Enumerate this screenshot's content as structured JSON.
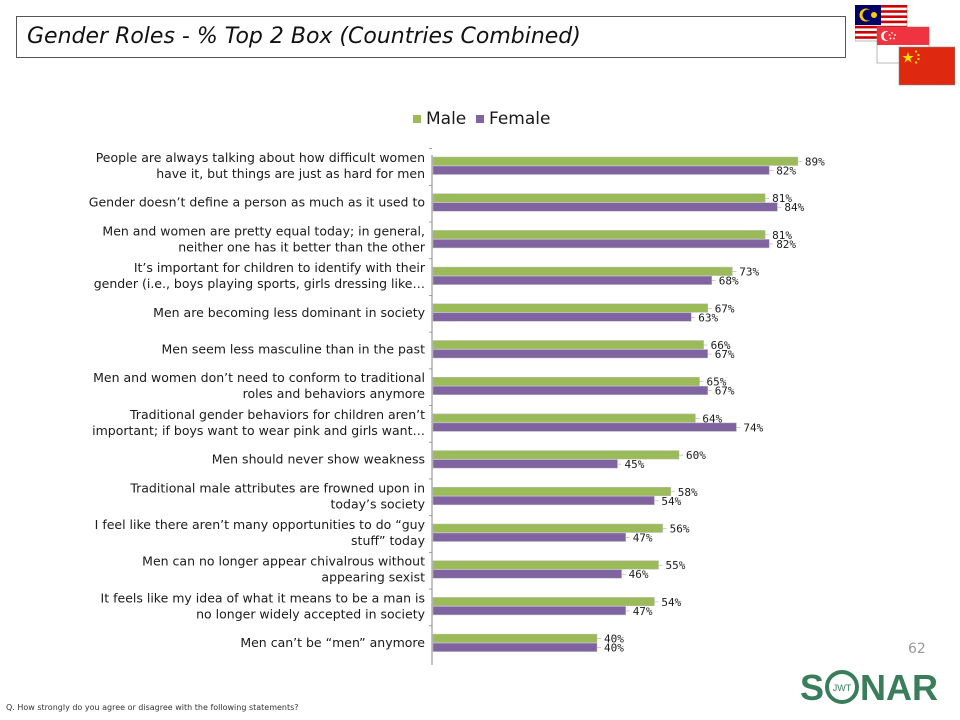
{
  "header": {
    "title": "Gender Roles - % Top 2 Box (Countries Combined)"
  },
  "flags": [
    {
      "name": "Malaysia"
    },
    {
      "name": "Singapore"
    },
    {
      "name": "China"
    }
  ],
  "chart_data": {
    "type": "bar",
    "orientation": "horizontal",
    "legend_position": "top",
    "grid": false,
    "xlim": [
      0,
      100
    ],
    "categories": [
      [
        "People are always talking about how difficult women",
        "have it, but things are just as hard for men"
      ],
      [
        "Gender doesn’t define a person as much as it used to"
      ],
      [
        "Men and women are pretty equal today; in general,",
        "neither one has it better than the other"
      ],
      [
        "It’s important for children to identify with their",
        "gender (i.e., boys playing sports, girls dressing like…"
      ],
      [
        "Men are becoming less dominant in society"
      ],
      [
        "Men seem less masculine than in the past"
      ],
      [
        "Men and women don’t need to conform to traditional",
        "roles and behaviors anymore"
      ],
      [
        "Traditional gender behaviors for children aren’t",
        "important; if boys want to wear pink and girls want…"
      ],
      [
        "Men should never show weakness"
      ],
      [
        "Traditional male attributes are frowned upon in",
        "today’s society"
      ],
      [
        "I feel like there aren’t many opportunities to do “guy",
        "stuff” today"
      ],
      [
        "Men can no longer appear chivalrous without",
        "appearing sexist"
      ],
      [
        "It feels like my idea of what it means to be a man is",
        "no longer widely accepted in society"
      ],
      [
        "Men can’t be “men” anymore"
      ]
    ],
    "series": [
      {
        "name": "Male",
        "color": "#9bbb59",
        "values": [
          89,
          81,
          81,
          73,
          67,
          66,
          65,
          64,
          60,
          58,
          56,
          55,
          54,
          40
        ]
      },
      {
        "name": "Female",
        "color": "#8064a2",
        "values": [
          82,
          84,
          82,
          68,
          63,
          67,
          67,
          74,
          45,
          54,
          47,
          46,
          47,
          40
        ]
      }
    ],
    "value_suffix": "%"
  },
  "page_number": "62",
  "footnote": "Q. How strongly do you agree or disagree with the following statements?",
  "logo": {
    "text_left": "S",
    "text_right": "NAR",
    "inner": "JWT",
    "color": "#3a7d5a"
  }
}
